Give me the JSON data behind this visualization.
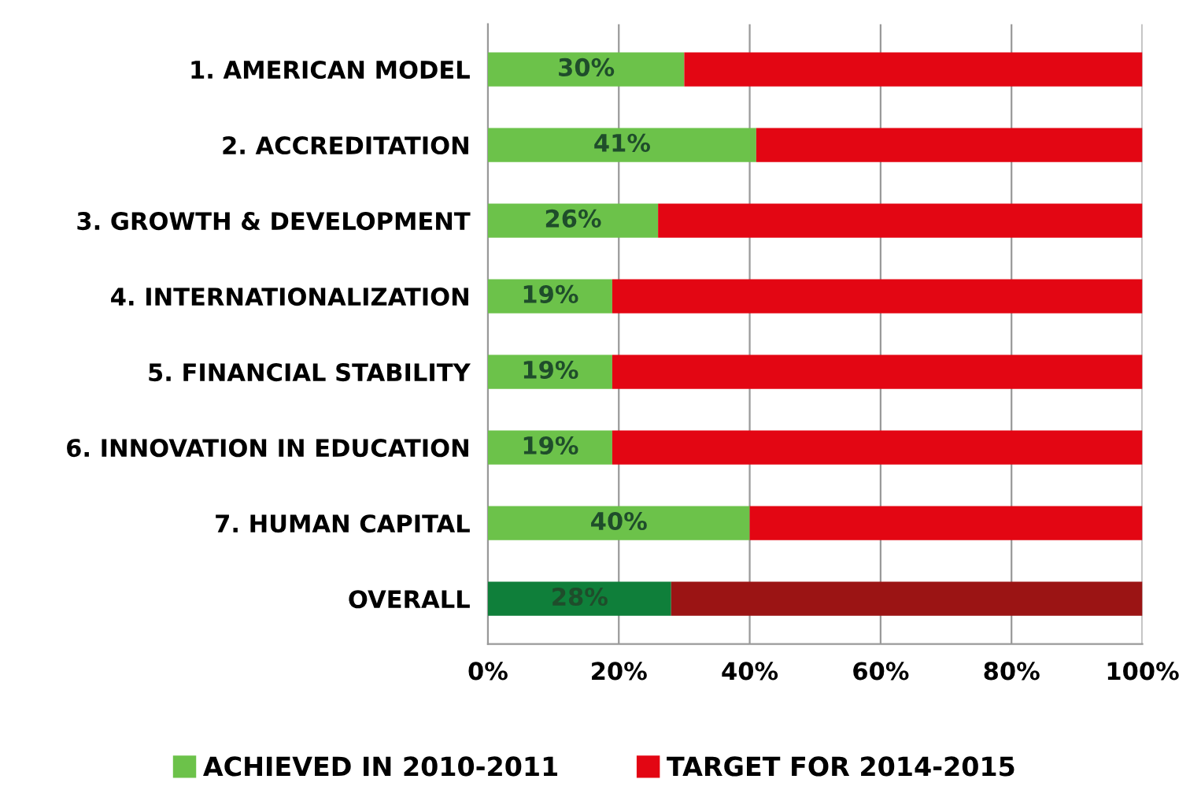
{
  "chart_data": {
    "type": "bar",
    "orientation": "horizontal",
    "stacked": true,
    "categories": [
      "1. AMERICAN MODEL",
      "2. ACCREDITATION",
      "3. GROWTH & DEVELOPMENT",
      "4. INTERNATIONALIZATION",
      "5. FINANCIAL STABILITY",
      "6. INNOVATION IN EDUCATION",
      "7. HUMAN CAPITAL",
      "OVERALL"
    ],
    "series": [
      {
        "name": "ACHIEVED IN 2010-2011",
        "color": "#6cc24a",
        "colors": [
          "#6cc24a",
          "#6cc24a",
          "#6cc24a",
          "#6cc24a",
          "#6cc24a",
          "#6cc24a",
          "#6cc24a",
          "#0f7f3a"
        ],
        "values": [
          30,
          41,
          26,
          19,
          19,
          19,
          40,
          28
        ],
        "value_labels": [
          "30%",
          "41%",
          "26%",
          "19%",
          "19%",
          "19%",
          "40%",
          "28%"
        ]
      },
      {
        "name": "TARGET FOR 2014-2015",
        "color": "#e30613",
        "colors": [
          "#e30613",
          "#e30613",
          "#e30613",
          "#e30613",
          "#e30613",
          "#e30613",
          "#e30613",
          "#9b1414"
        ],
        "values": [
          70,
          59,
          74,
          81,
          81,
          81,
          60,
          72
        ]
      }
    ],
    "xlim": [
      0,
      100
    ],
    "xticks": [
      {
        "value": 0,
        "label": "0%"
      },
      {
        "value": 20,
        "label": "20%"
      },
      {
        "value": 40,
        "label": "40%"
      },
      {
        "value": 60,
        "label": "60%"
      },
      {
        "value": 80,
        "label": "80%"
      },
      {
        "value": 100,
        "label": "100%"
      }
    ],
    "grid": "x",
    "legend": "bottom"
  }
}
